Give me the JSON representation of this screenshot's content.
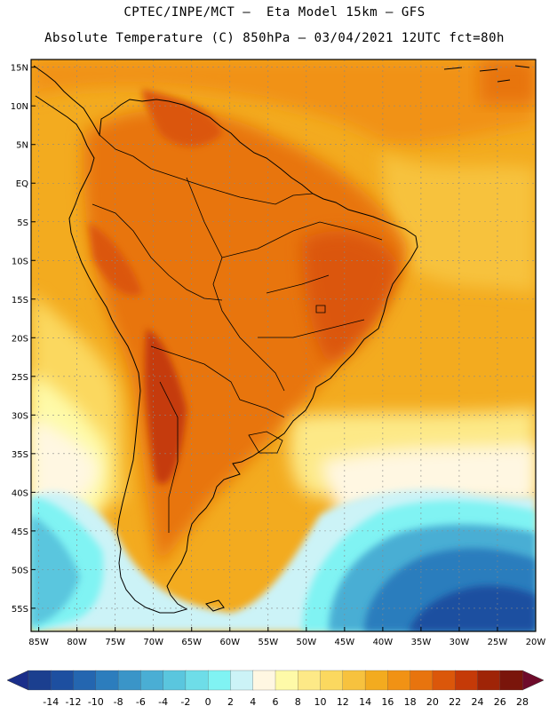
{
  "header": {
    "title_line1": "CPTEC/INPE/MCT –  Eta Model 15km – GFS",
    "title_line2": "Absolute Temperature (C) 850hPa – 03/04/2021 12UTC fct=80h"
  },
  "map": {
    "lat_labels": [
      "15N",
      "10N",
      "5N",
      "EQ",
      "5S",
      "10S",
      "15S",
      "20S",
      "25S",
      "30S",
      "35S",
      "40S",
      "45S",
      "50S",
      "55S"
    ],
    "lat_values": [
      15,
      10,
      5,
      0,
      -5,
      -10,
      -15,
      -20,
      -25,
      -30,
      -35,
      -40,
      -45,
      -50,
      -55
    ],
    "lon_labels": [
      "85W",
      "80W",
      "75W",
      "70W",
      "65W",
      "60W",
      "55W",
      "50W",
      "45W",
      "40W",
      "35W",
      "30W",
      "25W",
      "20W"
    ],
    "lon_values": [
      -85,
      -80,
      -75,
      -70,
      -65,
      -60,
      -55,
      -50,
      -45,
      -40,
      -35,
      -30,
      -25,
      -20
    ],
    "extent": {
      "lon_min": -86,
      "lon_max": -20,
      "lat_min": -58,
      "lat_max": 16
    }
  },
  "colorbar": {
    "ticks": [
      "-14",
      "-12",
      "-10",
      "-8",
      "-6",
      "-4",
      "-2",
      "0",
      "2",
      "4",
      "6",
      "8",
      "10",
      "12",
      "14",
      "16",
      "18",
      "20",
      "22",
      "24",
      "26",
      "28"
    ],
    "colors": [
      "#1b3f8f",
      "#1d4fa0",
      "#2466b0",
      "#2c7dbd",
      "#3a95c8",
      "#4aaed4",
      "#5ac6de",
      "#6edde8",
      "#80f3f3",
      "#ccf3f7",
      "#fff7e2",
      "#fefaa8",
      "#fde987",
      "#fbd85f",
      "#f7c23e",
      "#f3ab1f",
      "#f19214",
      "#e8740e",
      "#db570a",
      "#c53a08",
      "#9f2407",
      "#7a150b"
    ],
    "left_end_color": "#1a2e8a",
    "right_end_color": "#6e0b2a"
  }
}
